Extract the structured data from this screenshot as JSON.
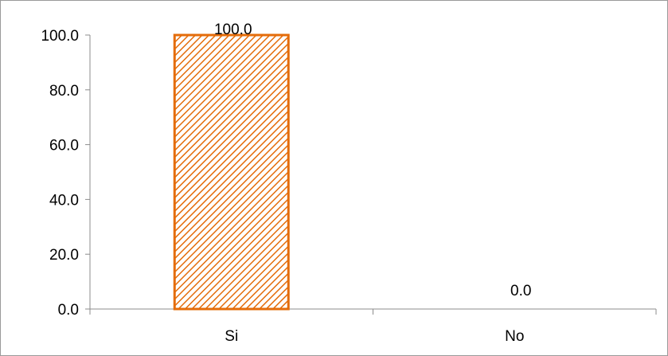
{
  "chart_data": {
    "type": "bar",
    "categories": [
      "Si",
      "No"
    ],
    "values": [
      100.0,
      0.0
    ],
    "data_labels": [
      "100.0",
      "0.0"
    ],
    "ylim": [
      0,
      100
    ],
    "y_ticks": [
      0,
      20,
      40,
      60,
      80,
      100
    ],
    "y_tick_labels": [
      "0.0",
      "20.0",
      "40.0",
      "60.0",
      "80.0",
      "100.0"
    ],
    "title": "",
    "xlabel": "",
    "ylabel": "",
    "grid": false,
    "legend": "none",
    "bar_fill_pattern": "diagonal-hatch",
    "bar_color": "#E46C0A"
  }
}
